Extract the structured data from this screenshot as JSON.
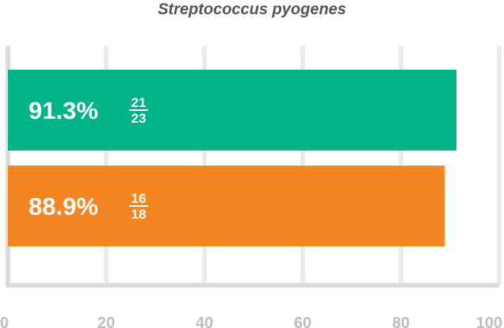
{
  "chart_data": {
    "type": "bar",
    "orientation": "horizontal",
    "title": "Streptococcus pyogenes",
    "xlabel": "",
    "ylabel": "",
    "xlim": [
      0,
      100
    ],
    "x_ticks": [
      "0",
      "20",
      "40",
      "60",
      "80",
      "100"
    ],
    "grid": true,
    "legend": "none",
    "bars": [
      {
        "value": 91.3,
        "label": "91.3%",
        "numerator": "21",
        "denominator": "23",
        "color": "#00b388"
      },
      {
        "value": 88.9,
        "label": "88.9%",
        "numerator": "16",
        "denominator": "18",
        "color": "#f58520"
      }
    ]
  },
  "colors": {
    "grid": "#ebebeb",
    "axis": "#dcdcdc",
    "tick_text": "#bdbdbd",
    "title_text": "#555555"
  }
}
